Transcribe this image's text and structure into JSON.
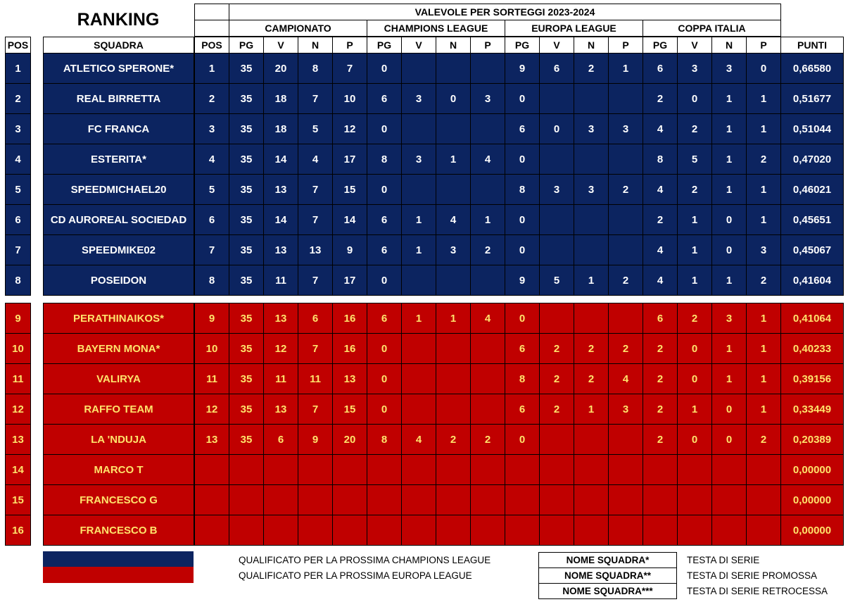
{
  "title": "RANKING",
  "header": {
    "valevole": "VALEVOLE PER SORTEGGI 2023-2024",
    "groups": [
      "CAMPIONATO",
      "CHAMPIONS LEAGUE",
      "EUROPA LEAGUE",
      "COPPA ITALIA"
    ],
    "pos_label": "POS",
    "squadra_label": "SQUADRA",
    "columns": [
      "POS",
      "PG",
      "V",
      "N",
      "P",
      "PG",
      "V",
      "N",
      "P",
      "PG",
      "V",
      "N",
      "P",
      "PG",
      "V",
      "N",
      "P"
    ],
    "punti_label": "PUNTI"
  },
  "rows": [
    {
      "pos": "1",
      "team": "ATLETICO SPERONE*",
      "stats": [
        "1",
        "35",
        "20",
        "8",
        "7",
        "0",
        "",
        "",
        "",
        "9",
        "6",
        "2",
        "1",
        "6",
        "3",
        "3",
        "0"
      ],
      "points": "0,66580",
      "zone": "champions"
    },
    {
      "pos": "2",
      "team": "REAL BIRRETTA",
      "stats": [
        "2",
        "35",
        "18",
        "7",
        "10",
        "6",
        "3",
        "0",
        "3",
        "0",
        "",
        "",
        "",
        "2",
        "0",
        "1",
        "1"
      ],
      "points": "0,51677",
      "zone": "champions"
    },
    {
      "pos": "3",
      "team": "FC FRANCA",
      "stats": [
        "3",
        "35",
        "18",
        "5",
        "12",
        "0",
        "",
        "",
        "",
        "6",
        "0",
        "3",
        "3",
        "4",
        "2",
        "1",
        "1"
      ],
      "points": "0,51044",
      "zone": "champions"
    },
    {
      "pos": "4",
      "team": "ESTERITA*",
      "stats": [
        "4",
        "35",
        "14",
        "4",
        "17",
        "8",
        "3",
        "1",
        "4",
        "0",
        "",
        "",
        "",
        "8",
        "5",
        "1",
        "2"
      ],
      "points": "0,47020",
      "zone": "champions"
    },
    {
      "pos": "5",
      "team": "SPEEDMICHAEL20",
      "stats": [
        "5",
        "35",
        "13",
        "7",
        "15",
        "0",
        "",
        "",
        "",
        "8",
        "3",
        "3",
        "2",
        "4",
        "2",
        "1",
        "1"
      ],
      "points": "0,46021",
      "zone": "champions"
    },
    {
      "pos": "6",
      "team": "CD AUROREAL SOCIEDAD",
      "stats": [
        "6",
        "35",
        "14",
        "7",
        "14",
        "6",
        "1",
        "4",
        "1",
        "0",
        "",
        "",
        "",
        "2",
        "1",
        "0",
        "1"
      ],
      "points": "0,45651",
      "zone": "champions"
    },
    {
      "pos": "7",
      "team": "SPEEDMIKE02",
      "stats": [
        "7",
        "35",
        "13",
        "13",
        "9",
        "6",
        "1",
        "3",
        "2",
        "0",
        "",
        "",
        "",
        "4",
        "1",
        "0",
        "3"
      ],
      "points": "0,45067",
      "zone": "champions"
    },
    {
      "pos": "8",
      "team": "POSEIDON",
      "stats": [
        "8",
        "35",
        "11",
        "7",
        "17",
        "0",
        "",
        "",
        "",
        "9",
        "5",
        "1",
        "2",
        "4",
        "1",
        "1",
        "2"
      ],
      "points": "0,41604",
      "zone": "champions"
    },
    {
      "pos": "9",
      "team": "PERATHINAIKOS*",
      "stats": [
        "9",
        "35",
        "13",
        "6",
        "16",
        "6",
        "1",
        "1",
        "4",
        "0",
        "",
        "",
        "",
        "6",
        "2",
        "3",
        "1"
      ],
      "points": "0,41064",
      "zone": "europa"
    },
    {
      "pos": "10",
      "team": "BAYERN MONA*",
      "stats": [
        "10",
        "35",
        "12",
        "7",
        "16",
        "0",
        "",
        "",
        "",
        "6",
        "2",
        "2",
        "2",
        "2",
        "0",
        "1",
        "1"
      ],
      "points": "0,40233",
      "zone": "europa"
    },
    {
      "pos": "11",
      "team": "VALIRYA",
      "stats": [
        "11",
        "35",
        "11",
        "11",
        "13",
        "0",
        "",
        "",
        "",
        "8",
        "2",
        "2",
        "4",
        "2",
        "0",
        "1",
        "1"
      ],
      "points": "0,39156",
      "zone": "europa"
    },
    {
      "pos": "12",
      "team": "RAFFO TEAM",
      "stats": [
        "12",
        "35",
        "13",
        "7",
        "15",
        "0",
        "",
        "",
        "",
        "6",
        "2",
        "1",
        "3",
        "2",
        "1",
        "0",
        "1"
      ],
      "points": "0,33449",
      "zone": "europa"
    },
    {
      "pos": "13",
      "team": "LA 'NDUJA",
      "stats": [
        "13",
        "35",
        "6",
        "9",
        "20",
        "8",
        "4",
        "2",
        "2",
        "0",
        "",
        "",
        "",
        "2",
        "0",
        "0",
        "2"
      ],
      "points": "0,20389",
      "zone": "europa"
    },
    {
      "pos": "14",
      "team": "MARCO T",
      "stats": [
        "",
        "",
        "",
        "",
        "",
        "",
        "",
        "",
        "",
        "",
        "",
        "",
        "",
        "",
        "",
        "",
        ""
      ],
      "points": "0,00000",
      "zone": "europa"
    },
    {
      "pos": "15",
      "team": "FRANCESCO G",
      "stats": [
        "",
        "",
        "",
        "",
        "",
        "",
        "",
        "",
        "",
        "",
        "",
        "",
        "",
        "",
        "",
        "",
        ""
      ],
      "points": "0,00000",
      "zone": "europa"
    },
    {
      "pos": "16",
      "team": "FRANCESCO B",
      "stats": [
        "",
        "",
        "",
        "",
        "",
        "",
        "",
        "",
        "",
        "",
        "",
        "",
        "",
        "",
        "",
        "",
        ""
      ],
      "points": "0,00000",
      "zone": "europa"
    }
  ],
  "legend": {
    "colors": {
      "champions": "#0c2460",
      "europa": "#c00000",
      "europa_text": "#ffe36b"
    },
    "champions_text": "QUALIFICATO PER LA PROSSIMA CHAMPIONS LEAGUE",
    "europa_text": "QUALIFICATO PER LA PROSSIMA EUROPA LEAGUE",
    "keys": [
      {
        "label": "NOME SQUADRA*",
        "meaning": "TESTA DI SERIE"
      },
      {
        "label": "NOME SQUADRA**",
        "meaning": "TESTA DI SERIE PROMOSSA"
      },
      {
        "label": "NOME SQUADRA***",
        "meaning": "TESTA DI SERIE RETROCESSA"
      }
    ]
  }
}
